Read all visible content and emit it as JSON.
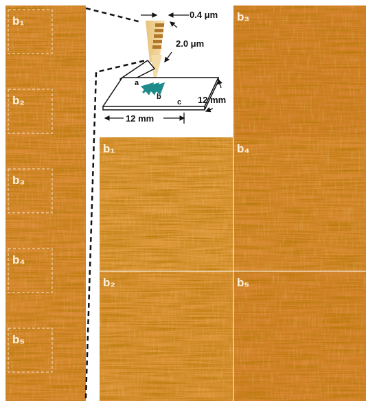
{
  "left_strip": {
    "labels": [
      "b₁",
      "b₂",
      "b₃",
      "b₄",
      "b₅"
    ]
  },
  "schematic": {
    "tip_width": "0.4 μm",
    "tip_height": "2.0 μm",
    "sample_width": "12 mm",
    "sample_depth": "12 mm",
    "points": [
      "a",
      "b",
      "c"
    ]
  },
  "panels": [
    {
      "label": "b₃"
    },
    {
      "label": "b₁"
    },
    {
      "label": "b₄"
    },
    {
      "label": "b₂"
    },
    {
      "label": "b₅"
    }
  ]
}
